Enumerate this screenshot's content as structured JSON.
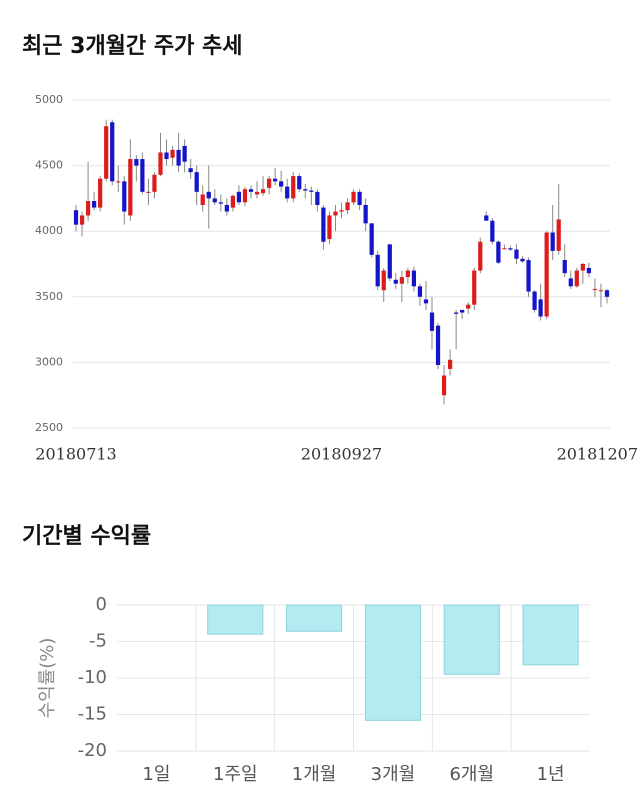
{
  "chart_data": [
    {
      "type": "candlestick",
      "title": "최근 3개월간 주가 추세",
      "categories": [
        "20180713",
        null,
        null,
        null,
        null,
        null,
        null,
        null,
        null,
        null,
        null,
        null,
        null,
        null,
        null,
        null,
        null,
        null,
        null,
        null,
        null,
        null,
        null,
        null,
        null,
        null,
        null,
        null,
        null,
        null,
        null,
        null,
        null,
        null,
        null,
        null,
        null,
        null,
        null,
        null,
        null,
        null,
        null,
        null,
        "20180927",
        null,
        null,
        null,
        null,
        null,
        null,
        null,
        null,
        null,
        null,
        null,
        null,
        null,
        null,
        null,
        null,
        null,
        null,
        null,
        null,
        null,
        null,
        null,
        null,
        null,
        null,
        null,
        null,
        null,
        null,
        null,
        null,
        null,
        null,
        null,
        null,
        null,
        null,
        null,
        null,
        null,
        null,
        null,
        "20181207"
      ],
      "open": [
        4160,
        4050,
        4120,
        4230,
        4180,
        4400,
        4830,
        4380,
        4380,
        4120,
        4550,
        4550,
        4300,
        4300,
        4430,
        4600,
        4560,
        4620,
        4650,
        4480,
        4450,
        4200,
        4300,
        4250,
        4220,
        4200,
        4180,
        4300,
        4220,
        4320,
        4280,
        4290,
        4330,
        4400,
        4380,
        4340,
        4250,
        4420,
        4320,
        4310,
        4300,
        4180,
        3940,
        4120,
        4150,
        4160,
        4220,
        4300,
        4200,
        4060,
        3820,
        3550,
        3900,
        3630,
        3600,
        3650,
        3700,
        3580,
        3480,
        3380,
        3280,
        2750,
        2950,
        3380,
        3400,
        3410,
        3440,
        3700,
        4120,
        4080,
        3920,
        3870,
        3870,
        3860,
        3790,
        3780,
        3540,
        3480,
        3350,
        3990,
        3850,
        3780,
        3640,
        3580,
        3700,
        3720,
        3560,
        3550,
        3550
      ],
      "high": [
        4200,
        4150,
        4530,
        4300,
        4420,
        4850,
        4850,
        4500,
        4420,
        4700,
        4580,
        4600,
        4400,
        4450,
        4750,
        4700,
        4650,
        4750,
        4700,
        4550,
        4500,
        4350,
        4500,
        4320,
        4280,
        4250,
        4280,
        4350,
        4340,
        4350,
        4380,
        4420,
        4420,
        4480,
        4460,
        4400,
        4450,
        4440,
        4360,
        4340,
        4320,
        4200,
        4150,
        4200,
        4220,
        4250,
        4320,
        4320,
        4250,
        4060,
        3850,
        3720,
        3900,
        3680,
        3700,
        3720,
        3730,
        3600,
        3620,
        3500,
        3300,
        2980,
        3100,
        3400,
        3400,
        3460,
        3720,
        3950,
        4150,
        4100,
        3930,
        3900,
        3890,
        3900,
        3810,
        3800,
        3550,
        3600,
        4000,
        4200,
        4360,
        3900,
        3700,
        3720,
        3760,
        3760,
        3640,
        3600,
        3560
      ],
      "low": [
        4000,
        3960,
        4080,
        4160,
        4150,
        4380,
        4350,
        4300,
        4050,
        4080,
        4380,
        4280,
        4200,
        4250,
        4420,
        4500,
        4500,
        4450,
        4450,
        4400,
        4200,
        4150,
        4020,
        4200,
        4150,
        4120,
        4150,
        4200,
        4190,
        4250,
        4250,
        4270,
        4280,
        4350,
        4300,
        4220,
        4220,
        4300,
        4250,
        4200,
        4150,
        3860,
        3900,
        4000,
        4100,
        4130,
        4200,
        4160,
        4000,
        3800,
        3550,
        3460,
        3620,
        3560,
        3460,
        3600,
        3540,
        3430,
        3400,
        3100,
        2950,
        2680,
        2900,
        3100,
        3330,
        3370,
        3400,
        3680,
        4080,
        3900,
        3750,
        3860,
        3850,
        3750,
        3760,
        3500,
        3380,
        3320,
        3330,
        3780,
        3820,
        3650,
        3560,
        3570,
        3600,
        3650,
        3500,
        3420,
        3450
      ],
      "close": [
        4050,
        4120,
        4230,
        4180,
        4400,
        4800,
        4380,
        4380,
        4150,
        4550,
        4500,
        4300,
        4300,
        4430,
        4600,
        4550,
        4620,
        4500,
        4530,
        4450,
        4300,
        4280,
        4250,
        4220,
        4210,
        4150,
        4270,
        4220,
        4320,
        4300,
        4300,
        4320,
        4400,
        4380,
        4340,
        4250,
        4420,
        4320,
        4310,
        4300,
        4200,
        3920,
        4120,
        4150,
        4160,
        4220,
        4300,
        4200,
        4060,
        3820,
        3580,
        3700,
        3640,
        3600,
        3650,
        3700,
        3580,
        3500,
        3450,
        3240,
        2980,
        2900,
        3020,
        3370,
        3380,
        3440,
        3700,
        3920,
        4080,
        3920,
        3760,
        3870,
        3860,
        3790,
        3770,
        3540,
        3400,
        3350,
        3990,
        3850,
        4090,
        3680,
        3580,
        3700,
        3750,
        3680,
        3560,
        3550,
        3500
      ],
      "up_color": "#dd1c1c",
      "down_color": "#1414c8",
      "ylim": [
        2500,
        5000
      ],
      "yticks": [
        2500,
        3000,
        3500,
        4000,
        4500,
        5000
      ],
      "grid": true
    },
    {
      "type": "bar",
      "title": "기간별 수익률",
      "ylabel": "수익률(%)",
      "categories": [
        "1일",
        "1주일",
        "1개월",
        "3개월",
        "6개월",
        "1년"
      ],
      "values": [
        0,
        -4.0,
        -3.6,
        -15.8,
        -9.5,
        -8.2
      ],
      "color": "#b2ebf2",
      "ylim": [
        -20,
        0
      ],
      "yticks": [
        0,
        -5,
        -10,
        -15,
        -20
      ],
      "grid": true
    }
  ]
}
